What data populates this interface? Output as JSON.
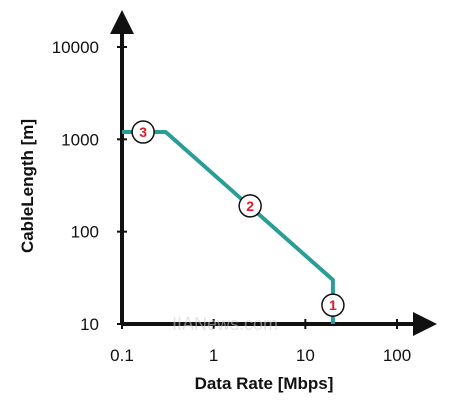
{
  "chart_data": {
    "type": "line",
    "xlabel": "Data Rate [Mbps]",
    "ylabel": "CableLength [m]",
    "x_scale": "log",
    "y_scale": "log",
    "xlim": [
      0.1,
      100
    ],
    "ylim": [
      10,
      10000
    ],
    "x_ticks": [
      "0.1",
      "1",
      "10",
      "100"
    ],
    "y_ticks": [
      "10",
      "100",
      "1000",
      "10000"
    ],
    "grid": false,
    "line_color": "#2a9d98",
    "series": [
      {
        "x": [
          0.1,
          0.3,
          20,
          20
        ],
        "y": [
          1200,
          1200,
          30,
          10
        ]
      }
    ],
    "markers": [
      {
        "label": "1",
        "x": 20,
        "y": 16
      },
      {
        "label": "2",
        "x": 2.5,
        "y": 190
      },
      {
        "label": "3",
        "x": 0.17,
        "y": 1200
      }
    ],
    "marker_text_color": "#e01a2c"
  },
  "watermark_text": "IIANews.com"
}
